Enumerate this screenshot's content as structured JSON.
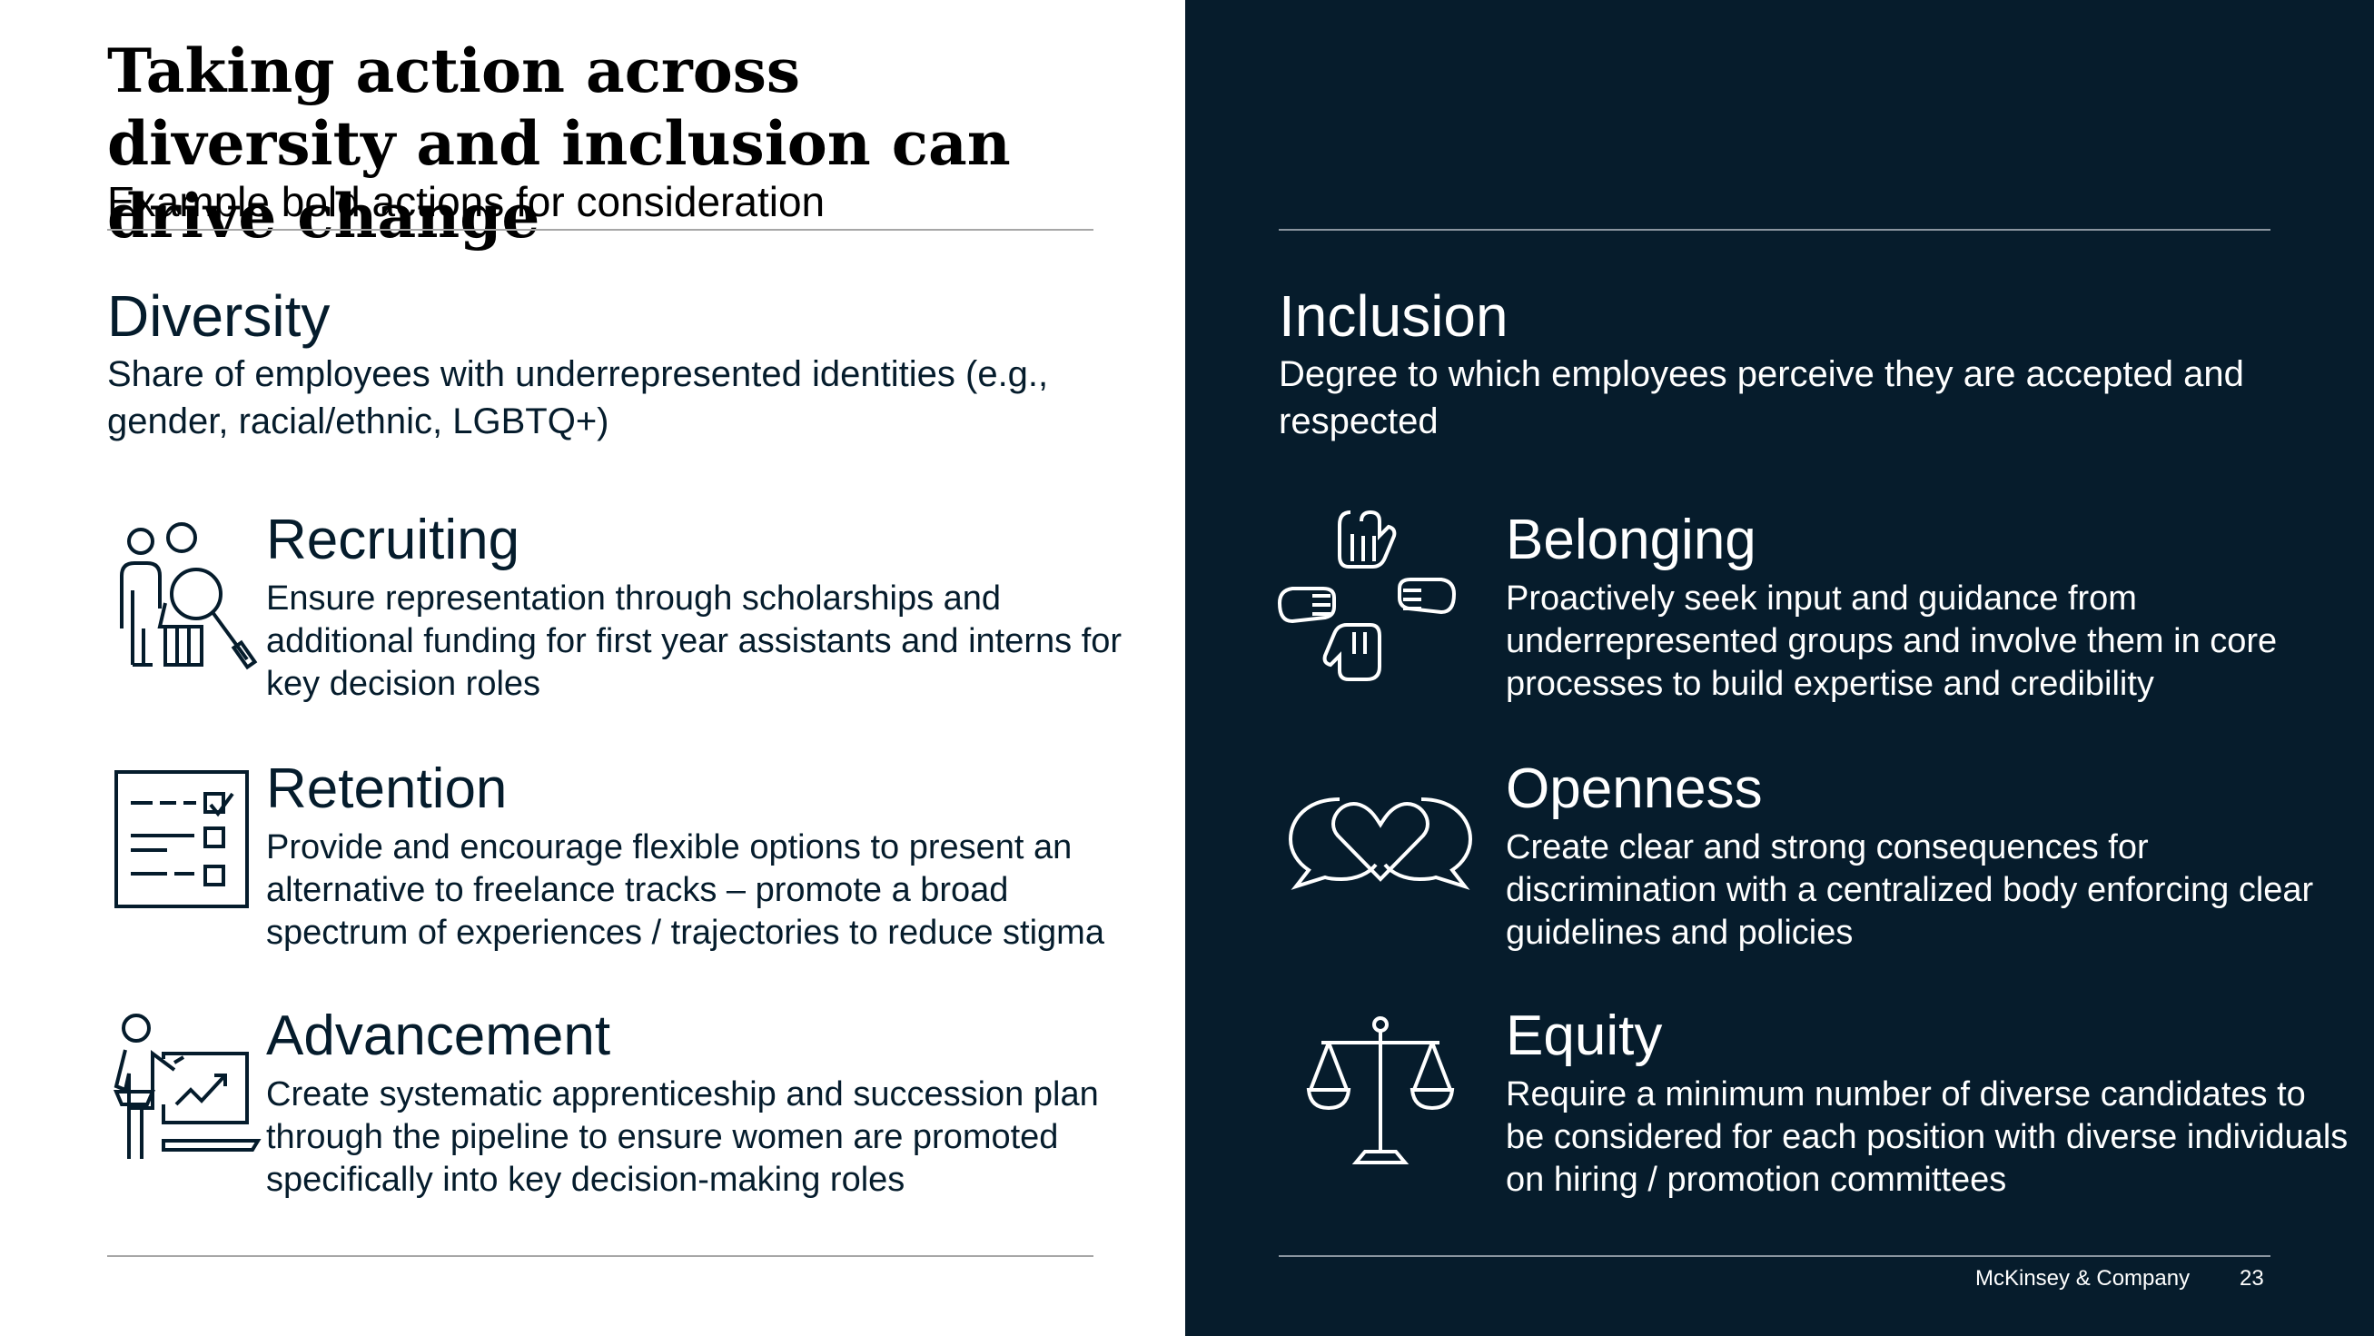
{
  "header": {
    "title": "Taking action across diversity and inclusion can drive change",
    "subtitle": "Example bold actions for consideration"
  },
  "diversity": {
    "heading": "Diversity",
    "description": "Share of employees with underrepresented identities (e.g., gender, racial/ethnic, LGBTQ+)",
    "items": [
      {
        "icon": "people-magnifier-icon",
        "title": "Recruiting",
        "description": "Ensure representation through scholarships and additional funding for first year assistants and interns for key decision roles"
      },
      {
        "icon": "checklist-icon",
        "title": "Retention",
        "description": "Provide and encourage flexible options to present an alternative to freelance tracks – promote a broad spectrum of experiences / trajectories to reduce stigma"
      },
      {
        "icon": "presenter-chart-icon",
        "title": "Advancement",
        "description": "Create systematic apprenticeship and succession plan through the pipeline to ensure women are promoted specifically into key decision-making roles"
      }
    ]
  },
  "inclusion": {
    "heading": "Inclusion",
    "description": "Degree to which employees perceive they are accepted and respected",
    "items": [
      {
        "icon": "hands-together-icon",
        "title": "Belonging",
        "description": "Proactively seek input and guidance from underrepresented groups and involve them in core processes to build expertise and credibility"
      },
      {
        "icon": "speech-bubbles-heart-icon",
        "title": "Openness",
        "description": "Create clear and strong consequences for discrimination with a centralized body enforcing clear guidelines and policies"
      },
      {
        "icon": "balance-scale-icon",
        "title": "Equity",
        "description": "Require a minimum number of diverse candidates to be considered for each position with diverse individuals on hiring / promotion committees"
      }
    ]
  },
  "footer": {
    "brand": "McKinsey & Company",
    "page_number": "23"
  },
  "colors": {
    "navy": "#061c2c",
    "white": "#ffffff",
    "text_dark": "#051c2c"
  }
}
